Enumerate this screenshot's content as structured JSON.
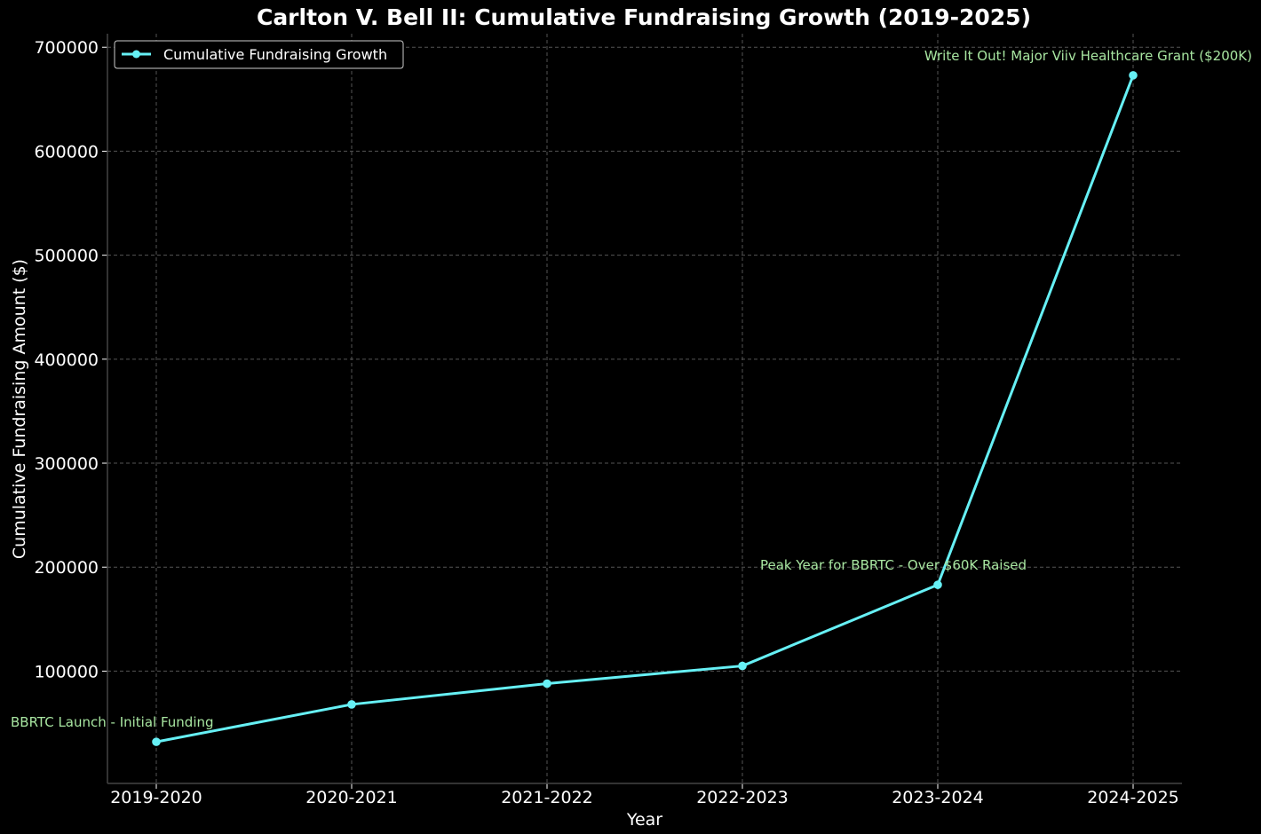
{
  "chart_data": {
    "type": "line",
    "title": "Carlton V. Bell II: Cumulative Fundraising Growth (2019-2025)",
    "xlabel": "Year",
    "ylabel": "Cumulative Fundraising Amount ($)",
    "categories": [
      "2019-2020",
      "2020-2021",
      "2021-2022",
      "2022-2023",
      "2023-2024",
      "2024-2025"
    ],
    "series": [
      {
        "name": "Cumulative Fundraising Growth",
        "values": [
          32000,
          68000,
          88000,
          105000,
          183000,
          673000
        ],
        "color": "#66f0f5"
      }
    ],
    "ylim": [
      -8000,
      713000
    ],
    "yticks": [
      100000,
      200000,
      300000,
      400000,
      500000,
      600000,
      700000
    ],
    "grid": true,
    "legend": "top-left",
    "annotations": [
      {
        "text": "BBRTC Launch - Initial Funding",
        "category_index": 0,
        "anchor": "left-of-point"
      },
      {
        "text": "Peak Year for BBRTC - Over $60K Raised",
        "category_index": 4,
        "anchor": "above-left"
      },
      {
        "text": "Write It Out! Major Viiv Healthcare Grant ($200K)",
        "category_index": 5,
        "anchor": "above-left"
      }
    ],
    "colors": {
      "background": "#000000",
      "text": "#ffffff",
      "annotation": "#a8e6a1",
      "grid": "#555555",
      "axis": "#444444"
    }
  }
}
